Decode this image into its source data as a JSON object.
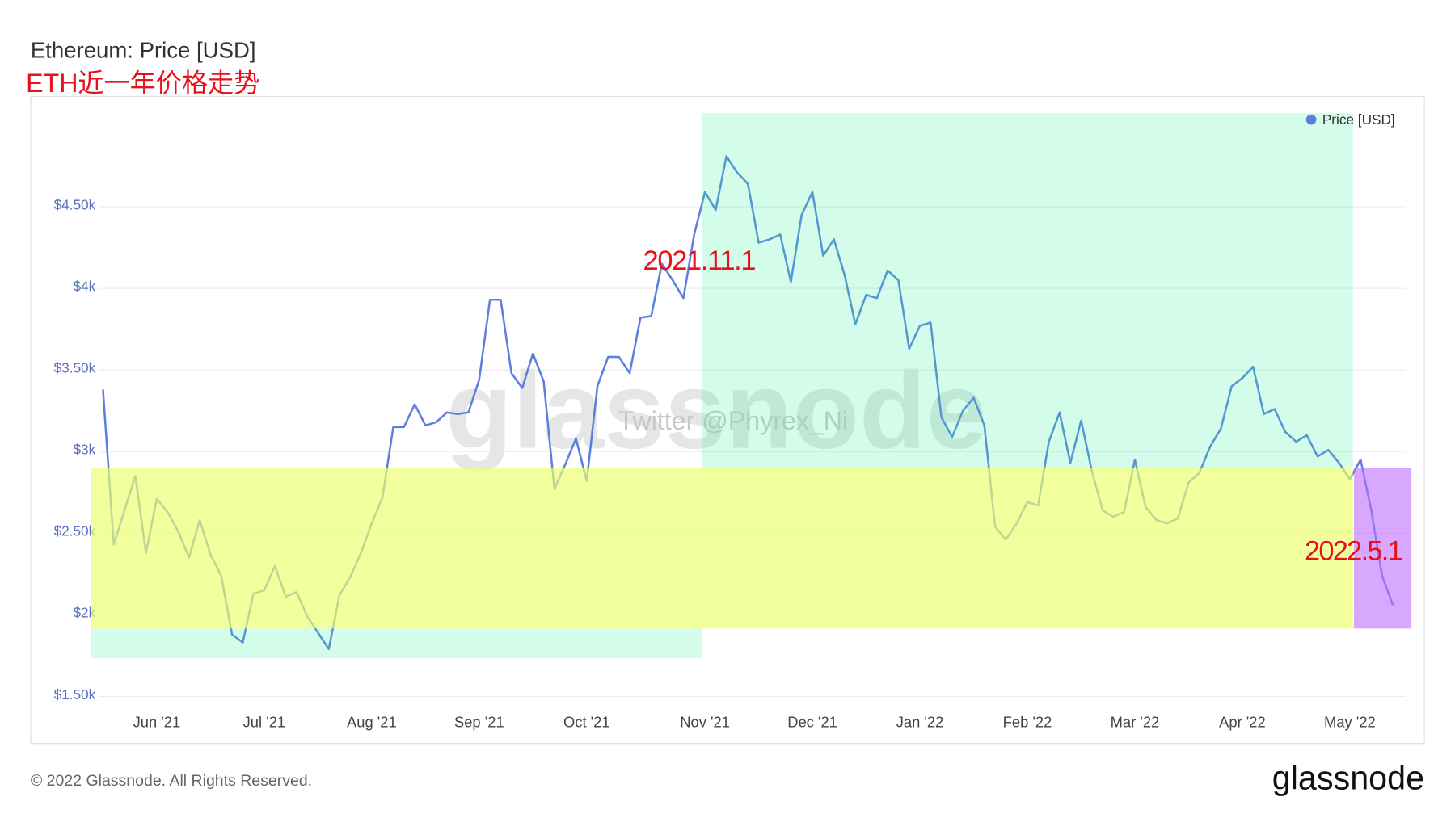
{
  "chart_data": {
    "type": "line",
    "title": "Ethereum: Price [USD]",
    "subtitle": "ETH近一年价格走势",
    "categories": [
      null,
      null,
      null,
      null,
      null,
      "Jun '21",
      null,
      null,
      null,
      null,
      null,
      null,
      null,
      null,
      null,
      "Jul '21",
      null,
      null,
      null,
      null,
      null,
      null,
      null,
      null,
      null,
      "Aug '21",
      null,
      null,
      null,
      null,
      null,
      null,
      null,
      null,
      null,
      "Sep '21",
      null,
      null,
      null,
      null,
      null,
      null,
      null,
      null,
      null,
      "Oct '21",
      null,
      null,
      null,
      null,
      null,
      null,
      null,
      null,
      null,
      null,
      "Nov '21",
      null,
      null,
      null,
      null,
      null,
      null,
      null,
      null,
      null,
      "Dec '21",
      null,
      null,
      null,
      null,
      null,
      null,
      null,
      null,
      null,
      "Jan '22",
      null,
      null,
      null,
      null,
      null,
      null,
      null,
      null,
      null,
      "Feb '22",
      null,
      null,
      null,
      null,
      null,
      null,
      null,
      null,
      null,
      "Mar '22",
      null,
      null,
      null,
      null,
      null,
      null,
      null,
      null,
      null,
      "Apr '22",
      null,
      null,
      null,
      null,
      null,
      null,
      null,
      null,
      null,
      "May '22",
      null,
      null,
      null,
      null
    ],
    "series": [
      {
        "name": "Price [USD]",
        "color": "#5b7fde",
        "values": [
          3380,
          2430,
          2640,
          2850,
          2380,
          2710,
          2630,
          2510,
          2350,
          2580,
          2370,
          2240,
          1880,
          1830,
          2130,
          2150,
          2300,
          2110,
          2140,
          1990,
          1890,
          1790,
          2120,
          2230,
          2380,
          2560,
          2720,
          3150,
          3150,
          3290,
          3160,
          3180,
          3240,
          3230,
          3240,
          3440,
          3930,
          3930,
          3480,
          3390,
          3600,
          3430,
          2770,
          2920,
          3080,
          2820,
          3400,
          3580,
          3580,
          3480,
          3820,
          3830,
          4150,
          4050,
          3940,
          4330,
          4590,
          4480,
          4810,
          4710,
          4640,
          4280,
          4300,
          4330,
          4040,
          4450,
          4590,
          4200,
          4300,
          4080,
          3780,
          3960,
          3940,
          4110,
          4050,
          3630,
          3770,
          3790,
          3210,
          3090,
          3250,
          3330,
          3160,
          2540,
          2460,
          2560,
          2690,
          2670,
          3060,
          3240,
          2930,
          3190,
          2880,
          2640,
          2600,
          2630,
          2950,
          2660,
          2580,
          2560,
          2590,
          2810,
          2870,
          3030,
          3140,
          3400,
          3450,
          3520,
          3230,
          3260,
          3120,
          3060,
          3100,
          2970,
          3010,
          2930,
          2830,
          2950,
          2640,
          2240,
          2060
        ]
      }
    ],
    "ylim": [
      1450,
      5000
    ],
    "yticks": [
      {
        "value": 1500,
        "label": "$1.50k"
      },
      {
        "value": 2000,
        "label": "$2k"
      },
      {
        "value": 2500,
        "label": "$2.50k"
      },
      {
        "value": 3000,
        "label": "$3k"
      },
      {
        "value": 3500,
        "label": "$3.50k"
      },
      {
        "value": 4000,
        "label": "$4k"
      },
      {
        "value": 4500,
        "label": "$4.50k"
      }
    ],
    "grid": true,
    "legend": "top-right",
    "annotations": [
      "2021.11.1",
      "2022.5.1"
    ],
    "watermark": "glassnode",
    "credit": "Twitter @Phyrex_Ni"
  },
  "footer": {
    "copyright": "© 2022 Glassnode. All Rights Reserved.",
    "logo": "glassnode"
  }
}
